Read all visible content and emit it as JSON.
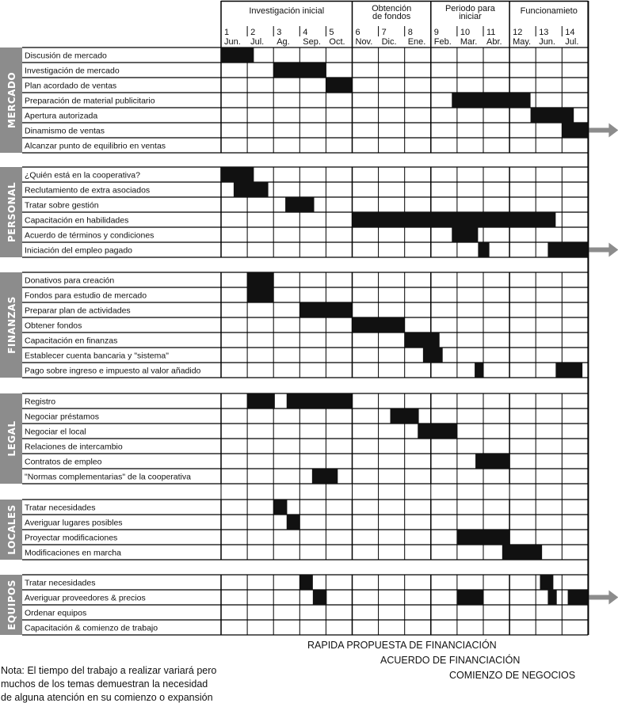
{
  "chart_data": {
    "type": "gantt",
    "x_unit": "month",
    "phases": [
      {
        "label": [
          "Investigación inicial"
        ],
        "start": 0,
        "end": 5
      },
      {
        "label": [
          "Obtención",
          "de fondos"
        ],
        "start": 5,
        "end": 8
      },
      {
        "label": [
          "Periodo para",
          "iniciar"
        ],
        "start": 8,
        "end": 11
      },
      {
        "label": [
          "Funcionamieto"
        ],
        "start": 11,
        "end": 14
      }
    ],
    "months": [
      {
        "num": "1",
        "name": "Jun."
      },
      {
        "num": "2",
        "name": "Jul."
      },
      {
        "num": "3",
        "name": "Ag."
      },
      {
        "num": "4",
        "name": "Sep."
      },
      {
        "num": "5",
        "name": "Oct."
      },
      {
        "num": "6",
        "name": "Nov."
      },
      {
        "num": "7",
        "name": "Dic."
      },
      {
        "num": "8",
        "name": "Ene."
      },
      {
        "num": "9",
        "name": "Feb."
      },
      {
        "num": "10",
        "name": "Mar."
      },
      {
        "num": "11",
        "name": "Abr."
      },
      {
        "num": "12",
        "name": "May."
      },
      {
        "num": "13",
        "name": "Jun."
      },
      {
        "num": "14",
        "name": "Jul."
      }
    ],
    "sections": [
      {
        "name": "MERCADO",
        "tasks": [
          {
            "label": "Discusión de mercado",
            "bars": [
              [
                0,
                1.25
              ]
            ]
          },
          {
            "label": "Investigación de mercado",
            "bars": [
              [
                2,
                4
              ]
            ]
          },
          {
            "label": "Plan acordado de ventas",
            "bars": [
              [
                4,
                5
              ]
            ]
          },
          {
            "label": "Preparación de material publicitario",
            "bars": [
              [
                8.8,
                11.8
              ]
            ]
          },
          {
            "label": "Apertura autorizada",
            "bars": [
              [
                11.8,
                13.45
              ]
            ]
          },
          {
            "label": "Dinamismo de ventas",
            "bars": [
              [
                13,
                14
              ]
            ],
            "continues": true
          },
          {
            "label": "Alcanzar punto de equilibrio en ventas",
            "bars": []
          }
        ]
      },
      {
        "name": "PERSONAL",
        "tasks": [
          {
            "label": "¿Quién está en la cooperativa?",
            "bars": [
              [
                0,
                1.25
              ]
            ]
          },
          {
            "label": "Reclutamiento de extra asociados",
            "bars": [
              [
                0.48,
                1.8
              ]
            ]
          },
          {
            "label": "Tratar sobre gestión",
            "bars": [
              [
                2.45,
                3.55
              ]
            ]
          },
          {
            "label": "Capacitación en habilidades",
            "bars": [
              [
                5,
                12.76
              ]
            ]
          },
          {
            "label": "Acuerdo de términos y condiciones",
            "bars": [
              [
                8.8,
                9.8
              ]
            ]
          },
          {
            "label": "Iniciación del empleo pagado",
            "bars": [
              [
                9.8,
                10.23
              ],
              [
                12.46,
                14
              ]
            ],
            "continues": true
          }
        ]
      },
      {
        "name": "FINANZAS",
        "tasks": [
          {
            "label": "Donativos para creación",
            "bars": [
              [
                1,
                2
              ]
            ]
          },
          {
            "label": "Fondos para estudio de mercado",
            "bars": [
              [
                1,
                2
              ]
            ]
          },
          {
            "label": "Preparar plan de actividades",
            "bars": [
              [
                3,
                5
              ]
            ]
          },
          {
            "label": "Obtener fondos",
            "bars": [
              [
                5,
                7
              ]
            ]
          },
          {
            "label": "Capacitación en finanzas",
            "bars": [
              [
                7,
                8.33
              ]
            ]
          },
          {
            "label": "Establecer cuenta bancaria y \"sistema\"",
            "bars": [
              [
                7.7,
                8.45
              ]
            ]
          },
          {
            "label": "Pago sobre ingreso e impuesto al valor añadido",
            "bars": [
              [
                9.67,
                10
              ],
              [
                12.76,
                13.78
              ]
            ]
          }
        ]
      },
      {
        "name": "LEGAL",
        "tasks": [
          {
            "label": "Registro",
            "bars": [
              [
                1,
                2.05
              ],
              [
                2.5,
                5
              ]
            ]
          },
          {
            "label": "Negociar préstamos",
            "bars": [
              [
                6.45,
                7.54
              ]
            ]
          },
          {
            "label": "Negociar el local",
            "bars": [
              [
                7.5,
                9
              ]
            ]
          },
          {
            "label": "Relaciones de intercambio",
            "bars": []
          },
          {
            "label": "Contratos de empleo",
            "bars": [
              [
                9.7,
                11
              ]
            ]
          },
          {
            "label": "\"Normas complementarias\" de la cooperativa",
            "bars": [
              [
                3.47,
                4.45
              ]
            ]
          }
        ]
      },
      {
        "name": "LOCALES",
        "tasks": [
          {
            "label": "Tratar necesidades",
            "bars": [
              [
                2,
                2.52
              ]
            ]
          },
          {
            "label": "Averiguar lugares posibles",
            "bars": [
              [
                2.5,
                3
              ]
            ]
          },
          {
            "label": "Proyectar modificaciones",
            "bars": [
              [
                9,
                11
              ]
            ]
          },
          {
            "label": "Modificaciones en marcha",
            "bars": [
              [
                10.72,
                12.24
              ]
            ]
          }
        ]
      },
      {
        "name": "EQUIPOS",
        "tasks": [
          {
            "label": "Tratar necesidades",
            "bars": [
              [
                3,
                3.5
              ],
              [
                12.16,
                12.67
              ]
            ]
          },
          {
            "label": "Averiguar proveedores & precios",
            "bars": [
              [
                3.5,
                4.03
              ],
              [
                9,
                10
              ],
              [
                12.46,
                12.8
              ],
              [
                13.22,
                14
              ]
            ],
            "continues": true
          },
          {
            "label": "Ordenar equipos",
            "bars": []
          },
          {
            "label": "Capacitación & comienzo de trabajo",
            "bars": []
          }
        ]
      }
    ],
    "milestones": [
      "RAPIDA PROPUESTA DE FINANCIACIÓN",
      "ACUERDO DE FINANCIACIÓN",
      "COMIENZO DE NEGOCIOS"
    ],
    "note": [
      "Nota:  El tiempo del trabajo a realizar variará pero",
      "muchos de los temas demuestran la necesidad",
      "de alguna atención en su comienzo o expansión"
    ],
    "colors": {
      "bar": "#111111",
      "section_band": "#8c8c8c",
      "arrow": "#8c8c8c",
      "grid": "#000000"
    }
  }
}
